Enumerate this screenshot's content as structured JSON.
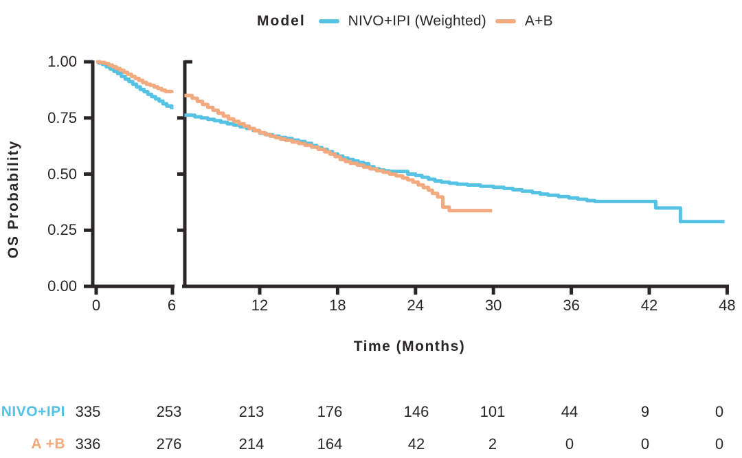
{
  "legend": {
    "title": "Model",
    "series": [
      {
        "label": "NIVO+IPI (Weighted)",
        "color": "#55C1E3"
      },
      {
        "label": "A+B",
        "color": "#F3A97E"
      }
    ]
  },
  "chart_data": {
    "type": "line",
    "subtype": "kaplan-meier-step",
    "title": "",
    "xlabel": "Time (Months)",
    "ylabel": "OS Probability",
    "xlim": [
      0,
      48
    ],
    "ylim": [
      0.0,
      1.0
    ],
    "x_ticks": [
      0,
      6,
      12,
      18,
      24,
      30,
      36,
      42,
      48
    ],
    "x_tick_labels": [
      "0",
      "6",
      "12",
      "18",
      "24",
      "30",
      "36",
      "42",
      "48"
    ],
    "y_ticks": [
      1.0,
      0.75,
      0.5,
      0.25,
      0.0
    ],
    "y_tick_labels": [
      "1.00",
      "0.75",
      "0.50",
      "0.25",
      "0.00"
    ],
    "grid": false,
    "legend_position": "top-center",
    "axis_break": {
      "between_months": [
        6,
        6.2
      ]
    },
    "series": [
      {
        "name": "NIVO+IPI (Weighted)",
        "color": "#55C1E3",
        "segment1": [
          [
            0,
            1.0
          ],
          [
            0.2,
            0.995
          ],
          [
            0.5,
            0.988
          ],
          [
            0.8,
            0.978
          ],
          [
            1.1,
            0.968
          ],
          [
            1.4,
            0.958
          ],
          [
            1.7,
            0.948
          ],
          [
            2.0,
            0.935
          ],
          [
            2.3,
            0.923
          ],
          [
            2.6,
            0.912
          ],
          [
            2.9,
            0.9
          ],
          [
            3.2,
            0.888
          ],
          [
            3.5,
            0.877
          ],
          [
            3.8,
            0.867
          ],
          [
            4.1,
            0.855
          ],
          [
            4.4,
            0.845
          ],
          [
            4.7,
            0.835
          ],
          [
            5.0,
            0.825
          ],
          [
            5.3,
            0.813
          ],
          [
            5.6,
            0.803
          ],
          [
            6.0,
            0.788
          ]
        ],
        "segment2": [
          [
            6.2,
            0.762
          ],
          [
            7.0,
            0.755
          ],
          [
            7.5,
            0.75
          ],
          [
            8.0,
            0.744
          ],
          [
            8.5,
            0.738
          ],
          [
            9.0,
            0.731
          ],
          [
            9.5,
            0.724
          ],
          [
            10.0,
            0.718
          ],
          [
            10.5,
            0.71
          ],
          [
            11.0,
            0.703
          ],
          [
            11.5,
            0.694
          ],
          [
            12.0,
            0.682
          ],
          [
            12.5,
            0.675
          ],
          [
            13.0,
            0.669
          ],
          [
            13.5,
            0.663
          ],
          [
            14.0,
            0.658
          ],
          [
            14.5,
            0.651
          ],
          [
            15.0,
            0.645
          ],
          [
            15.5,
            0.637
          ],
          [
            16.0,
            0.627
          ],
          [
            16.4,
            0.618
          ],
          [
            16.8,
            0.61
          ],
          [
            17.2,
            0.6
          ],
          [
            17.6,
            0.59
          ],
          [
            18.0,
            0.58
          ],
          [
            18.4,
            0.572
          ],
          [
            18.8,
            0.565
          ],
          [
            19.2,
            0.558
          ],
          [
            19.6,
            0.552
          ],
          [
            20.0,
            0.546
          ],
          [
            20.4,
            0.533
          ],
          [
            20.8,
            0.524
          ],
          [
            21.2,
            0.518
          ],
          [
            21.6,
            0.514
          ],
          [
            22.0,
            0.512
          ],
          [
            23.4,
            0.5
          ],
          [
            24.0,
            0.494
          ],
          [
            24.5,
            0.486
          ],
          [
            25.0,
            0.477
          ],
          [
            25.5,
            0.469
          ],
          [
            26.0,
            0.464
          ],
          [
            26.6,
            0.459
          ],
          [
            27.2,
            0.455
          ],
          [
            28.0,
            0.451
          ],
          [
            29.0,
            0.446
          ],
          [
            30.0,
            0.441
          ],
          [
            30.8,
            0.436
          ],
          [
            31.5,
            0.43
          ],
          [
            32.2,
            0.424
          ],
          [
            33.0,
            0.417
          ],
          [
            33.6,
            0.411
          ],
          [
            34.2,
            0.406
          ],
          [
            35.0,
            0.4
          ],
          [
            35.8,
            0.394
          ],
          [
            36.5,
            0.388
          ],
          [
            37.2,
            0.382
          ],
          [
            37.8,
            0.378
          ],
          [
            42.5,
            0.349
          ],
          [
            44.4,
            0.288
          ],
          [
            47.8,
            0.288
          ]
        ]
      },
      {
        "name": "A+B",
        "color": "#F3A97E",
        "segment1": [
          [
            0,
            1.0
          ],
          [
            0.3,
            0.997
          ],
          [
            0.7,
            0.992
          ],
          [
            1.0,
            0.985
          ],
          [
            1.3,
            0.978
          ],
          [
            1.6,
            0.97
          ],
          [
            1.9,
            0.962
          ],
          [
            2.2,
            0.953
          ],
          [
            2.5,
            0.944
          ],
          [
            2.8,
            0.935
          ],
          [
            3.1,
            0.926
          ],
          [
            3.4,
            0.917
          ],
          [
            3.7,
            0.908
          ],
          [
            4.0,
            0.9
          ],
          [
            4.3,
            0.895
          ],
          [
            4.6,
            0.888
          ],
          [
            4.9,
            0.881
          ],
          [
            5.2,
            0.874
          ],
          [
            5.5,
            0.868
          ],
          [
            6.0,
            0.862
          ]
        ],
        "segment2": [
          [
            6.2,
            0.85
          ],
          [
            6.8,
            0.838
          ],
          [
            7.2,
            0.824
          ],
          [
            7.6,
            0.81
          ],
          [
            8.0,
            0.797
          ],
          [
            8.4,
            0.784
          ],
          [
            8.8,
            0.771
          ],
          [
            9.2,
            0.758
          ],
          [
            9.6,
            0.746
          ],
          [
            10.0,
            0.735
          ],
          [
            10.4,
            0.724
          ],
          [
            10.8,
            0.713
          ],
          [
            11.2,
            0.703
          ],
          [
            11.6,
            0.693
          ],
          [
            12.0,
            0.684
          ],
          [
            12.4,
            0.676
          ],
          [
            12.8,
            0.669
          ],
          [
            13.2,
            0.662
          ],
          [
            13.6,
            0.656
          ],
          [
            14.0,
            0.65
          ],
          [
            14.5,
            0.643
          ],
          [
            15.0,
            0.636
          ],
          [
            15.5,
            0.628
          ],
          [
            16.0,
            0.62
          ],
          [
            16.5,
            0.61
          ],
          [
            17.0,
            0.599
          ],
          [
            17.4,
            0.589
          ],
          [
            17.8,
            0.578
          ],
          [
            18.2,
            0.565
          ],
          [
            18.6,
            0.556
          ],
          [
            19.0,
            0.548
          ],
          [
            19.5,
            0.54
          ],
          [
            20.0,
            0.531
          ],
          [
            20.5,
            0.523
          ],
          [
            21.0,
            0.515
          ],
          [
            21.5,
            0.508
          ],
          [
            22.0,
            0.5
          ],
          [
            22.5,
            0.492
          ],
          [
            23.0,
            0.483
          ],
          [
            23.4,
            0.474
          ],
          [
            23.8,
            0.464
          ],
          [
            24.2,
            0.452
          ],
          [
            24.6,
            0.44
          ],
          [
            25.0,
            0.428
          ],
          [
            25.3,
            0.414
          ],
          [
            25.7,
            0.398
          ],
          [
            26.1,
            0.353
          ],
          [
            26.6,
            0.337
          ],
          [
            29.9,
            0.337
          ]
        ]
      }
    ]
  },
  "risk_table": {
    "time_points": [
      0,
      6,
      12,
      18,
      24,
      30,
      36,
      42,
      48
    ],
    "rows": [
      {
        "label": "NIVO+IPI",
        "color": "#55C1E3",
        "values": [
          "335",
          "253",
          "213",
          "176",
          "146",
          "101",
          "44",
          "9",
          "0"
        ]
      },
      {
        "label": "A +B",
        "color": "#F3A97E",
        "values": [
          "336",
          "276",
          "214",
          "164",
          "42",
          "2",
          "0",
          "0",
          "0"
        ]
      }
    ]
  }
}
